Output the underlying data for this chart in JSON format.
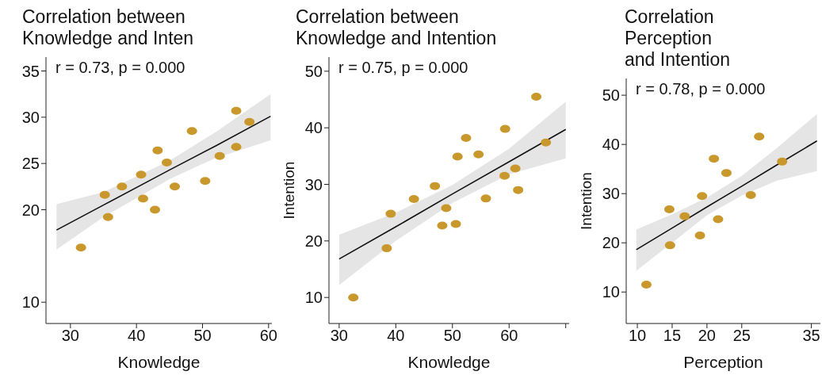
{
  "chart_data": [
    {
      "type": "scatter",
      "title": "Correlation between\nKnowledge and Inten",
      "xlabel": "Knowledge",
      "xlim": [
        26.3,
        60.5
      ],
      "ylim": [
        7.7,
        36.5
      ],
      "xticks": [
        30,
        40,
        50,
        60
      ],
      "yticks": [
        10,
        20,
        25,
        30,
        35
      ],
      "grid": false,
      "annotations": [
        "r = 0.73, p = 0.000"
      ],
      "series": [
        {
          "marker": "circle",
          "color": "#c9982c",
          "x": [
            31.6,
            35.2,
            35.7,
            37.8,
            40.7,
            41.0,
            42.8,
            43.2,
            44.6,
            45.8,
            48.4,
            50.4,
            52.6,
            55.1,
            55.1,
            57.1
          ],
          "values": [
            15.9,
            21.6,
            19.2,
            22.5,
            23.8,
            21.2,
            20.0,
            26.4,
            25.1,
            22.5,
            28.5,
            23.1,
            25.8,
            30.7,
            26.8,
            29.5
          ]
        },
        {
          "type": "line",
          "color": "#111111",
          "line_style": "solid",
          "x": [
            27.9,
            35,
            45,
            52,
            60.3
          ],
          "values": [
            17.8,
            20.5,
            24.3,
            26.9,
            30.1
          ],
          "lower": [
            15.7,
            19.2,
            23.3,
            25.6,
            27.5
          ],
          "upper": [
            20.6,
            21.9,
            25.3,
            28.4,
            32.5
          ]
        }
      ]
    },
    {
      "type": "scatter",
      "title": "Correlation between\nKnowledge and Intention",
      "xlabel": "Knowledge",
      "ylabel": "Intention",
      "xlim": [
        28.2,
        70.6
      ],
      "ylim": [
        5.4,
        52.5
      ],
      "xticks": [
        30,
        40,
        50,
        60,
        {
          "value": 70,
          "label": null
        }
      ],
      "yticks": [
        10,
        20,
        30,
        40,
        50
      ],
      "grid": false,
      "annotations": [
        "r = 0.75, p = 0.000"
      ],
      "series": [
        {
          "marker": "circle",
          "color": "#c9982c",
          "x": [
            32.5,
            38.4,
            39.1,
            43.2,
            46.9,
            48.2,
            48.9,
            50.6,
            50.9,
            52.4,
            54.6,
            55.9,
            59.2,
            59.3,
            61.1,
            61.6,
            64.8,
            66.5
          ],
          "values": [
            10.0,
            18.7,
            24.8,
            27.4,
            29.7,
            22.7,
            25.8,
            23.0,
            34.9,
            38.2,
            35.3,
            27.5,
            31.5,
            39.8,
            32.8,
            29.0,
            45.5,
            37.4
          ]
        },
        {
          "type": "line",
          "color": "#111111",
          "line_style": "solid",
          "x": [
            30,
            40,
            50,
            60,
            70
          ],
          "values": [
            16.8,
            22.5,
            28.3,
            34.0,
            39.7
          ],
          "lower": [
            12.2,
            20.0,
            26.7,
            31.8,
            34.6
          ],
          "upper": [
            21.1,
            25.0,
            29.9,
            36.3,
            44.6
          ]
        }
      ]
    },
    {
      "type": "scatter",
      "title": "Correlation\nPerception\nand Intention",
      "xlabel": "Perception",
      "ylabel": "Intention",
      "xlim": [
        8.4,
        36.3
      ],
      "ylim": [
        3.6,
        53.4
      ],
      "xticks": [
        10,
        15,
        20,
        25,
        35
      ],
      "yticks": [
        10,
        20,
        30,
        40,
        50
      ],
      "grid": false,
      "annotations": [
        "r = 0.78, p = 0.000"
      ],
      "series": [
        {
          "marker": "circle",
          "color": "#c9982c",
          "x": [
            11.3,
            14.6,
            14.7,
            16.8,
            19.0,
            19.3,
            21.0,
            21.6,
            22.8,
            26.3,
            27.5,
            30.8
          ],
          "values": [
            11.5,
            26.8,
            19.5,
            25.4,
            21.5,
            29.5,
            37.1,
            24.8,
            34.2,
            29.7,
            41.6,
            36.5
          ]
        },
        {
          "type": "line",
          "color": "#111111",
          "line_style": "solid",
          "x": [
            9.85,
            15,
            20,
            25,
            30,
            35.8
          ],
          "values": [
            18.6,
            23.0,
            27.3,
            31.5,
            35.8,
            40.7
          ],
          "lower": [
            14.3,
            20.0,
            25.6,
            29.6,
            32.6,
            34.6
          ],
          "upper": [
            22.7,
            25.8,
            29.2,
            33.6,
            39.2,
            46.2
          ]
        }
      ]
    }
  ]
}
